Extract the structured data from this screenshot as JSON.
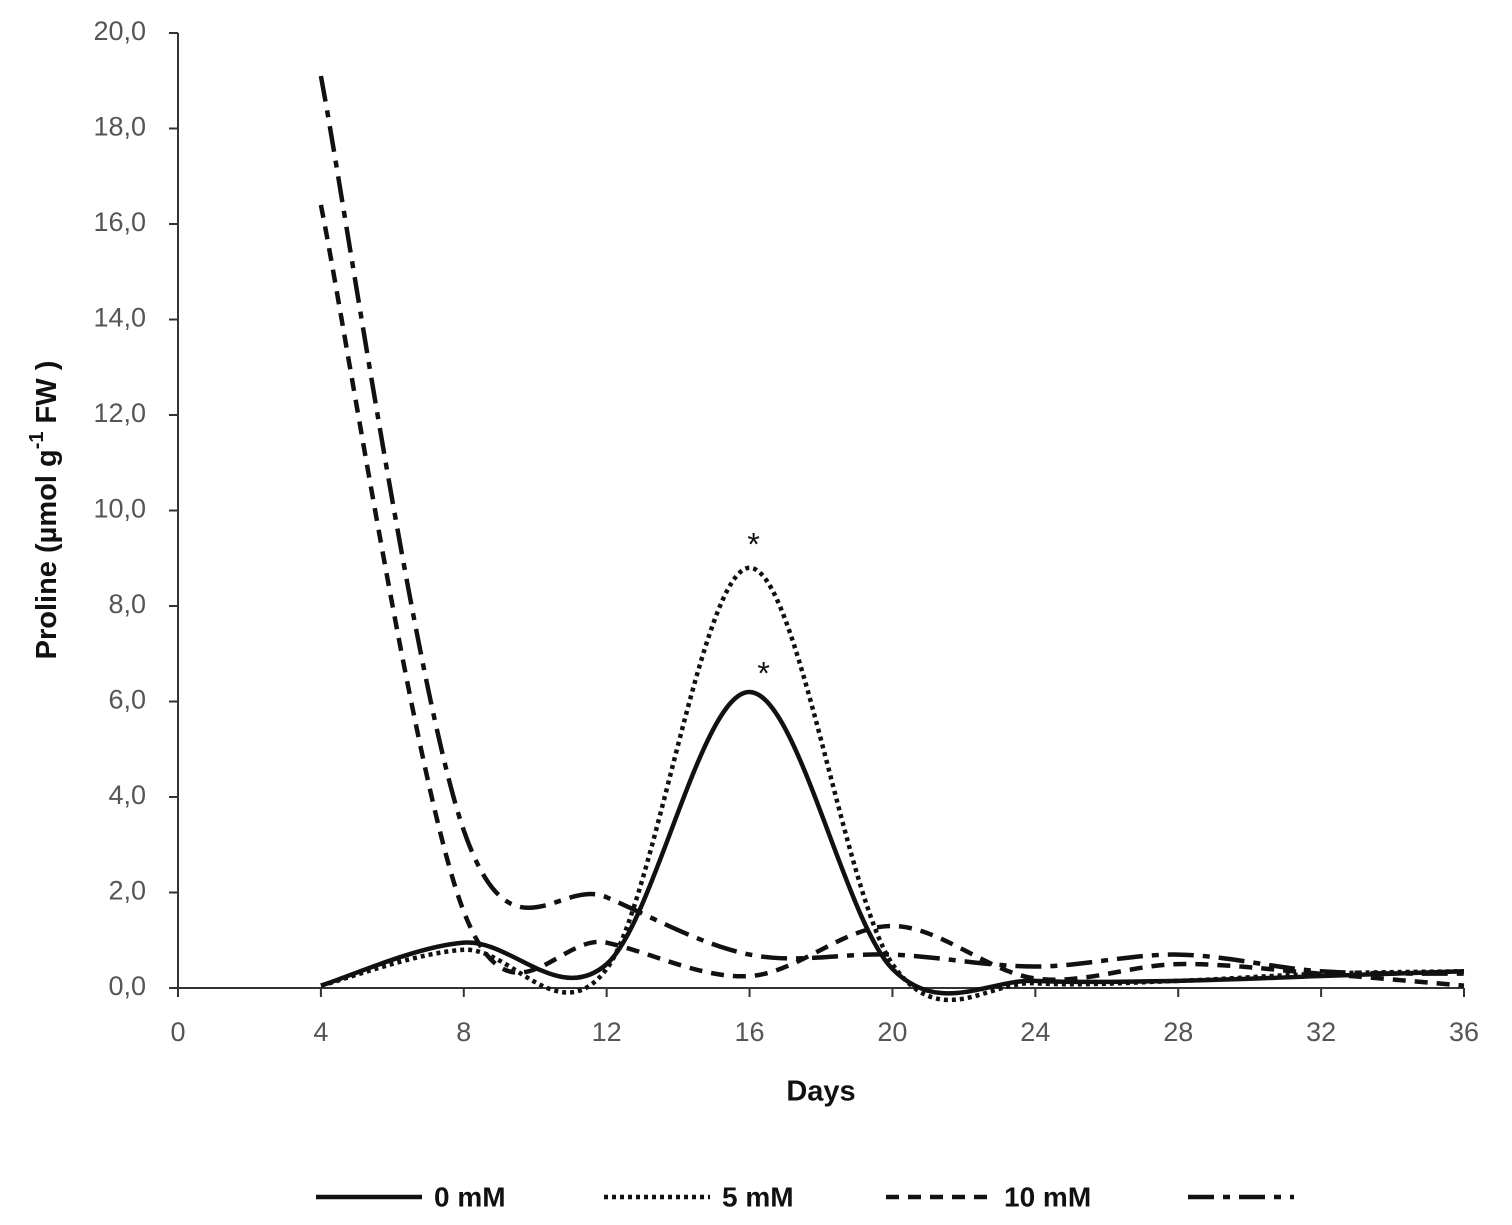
{
  "chart_data": {
    "type": "line",
    "xlabel": "Days",
    "ylabel": {
      "text": "Proline (µmol g",
      "sup": "-1",
      "after": " FW )"
    },
    "x": [
      4,
      8,
      12,
      16,
      20,
      24,
      28,
      32,
      36
    ],
    "series": [
      {
        "name": "0 mM",
        "color": "#111111",
        "style": "solid",
        "values": [
          0.05,
          0.95,
          0.5,
          6.2,
          0.4,
          0.15,
          0.15,
          0.25,
          0.35
        ]
      },
      {
        "name": "5 mM",
        "color": "#111111",
        "style": "dotted",
        "values": [
          0.05,
          0.8,
          0.4,
          8.8,
          0.5,
          0.1,
          0.15,
          0.3,
          0.35
        ]
      },
      {
        "name": "10 mM",
        "color": "#111111",
        "style": "dashed",
        "values": [
          16.4,
          1.6,
          0.95,
          0.25,
          1.3,
          0.2,
          0.5,
          0.3,
          0.05
        ]
      },
      {
        "color": "#111111",
        "style": "dashdot",
        "values": [
          19.1,
          3.3,
          1.9,
          0.7,
          0.7,
          0.45,
          0.7,
          0.35,
          0.3
        ]
      }
    ],
    "annotations": [
      {
        "text": "*",
        "x": 16,
        "y": 9.4
      },
      {
        "text": "*",
        "x": 16,
        "y": 6.7
      }
    ],
    "xlim": [
      0,
      36
    ],
    "xticks": [
      0,
      4,
      8,
      12,
      16,
      20,
      24,
      28,
      32,
      36
    ],
    "ylim": [
      0,
      20
    ],
    "yticks": [
      {
        "value": 0,
        "label": "0,0"
      },
      {
        "value": 2,
        "label": "2,0"
      },
      {
        "value": 4,
        "label": "4,0"
      },
      {
        "value": 6,
        "label": "6,0"
      },
      {
        "value": 8,
        "label": "8,0"
      },
      {
        "value": 10,
        "label": "10,0"
      },
      {
        "value": 12,
        "label": "12,0"
      },
      {
        "value": 14,
        "label": "14,0"
      },
      {
        "value": 16,
        "label": "16,0"
      },
      {
        "value": 18,
        "label": "18,0"
      },
      {
        "value": 20,
        "label": "20,0"
      }
    ],
    "legend": "bottom"
  }
}
